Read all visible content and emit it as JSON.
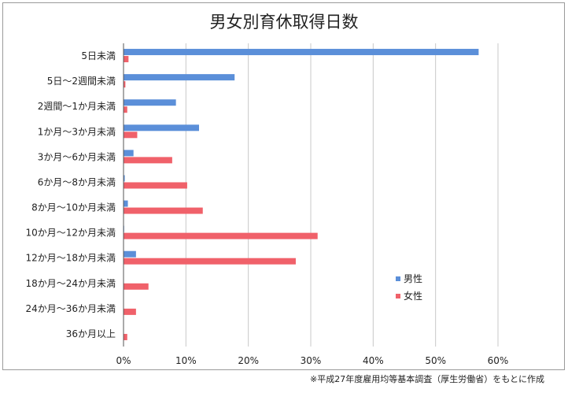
{
  "chart_data": {
    "type": "bar",
    "orientation": "horizontal",
    "title": "男女別育休取得日数",
    "xlabel": "",
    "ylabel": "",
    "xlim": [
      0,
      60
    ],
    "xticks": [
      "0%",
      "10%",
      "20%",
      "30%",
      "40%",
      "50%",
      "60%"
    ],
    "grid": "vertical",
    "legend_position": "right",
    "categories": [
      "5日未満",
      "5日〜2週間未満",
      "2週間〜1か月未満",
      "1か月〜3か月未満",
      "3か月〜6か月未満",
      "6か月〜8か月未満",
      "8か月〜10か月未満",
      "10か月〜12か月未満",
      "12か月〜18か月未満",
      "18か月〜24か月未満",
      "24か月〜36か月未満",
      "36か月以上"
    ],
    "series": [
      {
        "name": "男性",
        "color": "#5b8fd9",
        "values": [
          56.9,
          17.8,
          8.4,
          12.1,
          1.6,
          0.2,
          0.7,
          0.1,
          2.0,
          0.0,
          0.0,
          0.0
        ]
      },
      {
        "name": "女性",
        "color": "#f0616a",
        "values": [
          0.8,
          0.3,
          0.6,
          2.2,
          7.8,
          10.2,
          12.7,
          31.1,
          27.6,
          4.0,
          2.0,
          0.6
        ]
      }
    ]
  },
  "footnote": "※平成27年度雇用均等基本調査（厚生労働省）をもとに作成"
}
